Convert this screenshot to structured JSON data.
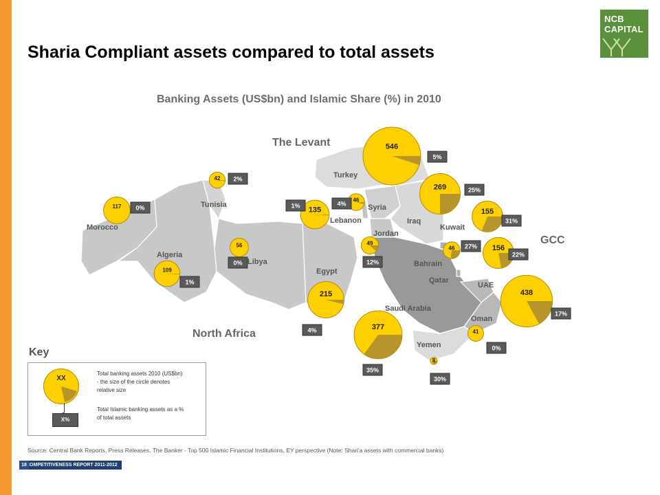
{
  "slide": {
    "title": "Sharia Compliant assets compared to total assets"
  },
  "logo": {
    "line1": "NCB",
    "line2": "CAPITAL",
    "color": "#5a8f3c"
  },
  "map": {
    "title": "Banking Assets (US$bn) and Islamic Share (%) in 2010",
    "regions": {
      "levant": "The Levant",
      "gcc": "GCC",
      "north_africa": "North Africa"
    },
    "countries": [
      {
        "name": "Morocco",
        "assets": 117,
        "islamic_share": "0%"
      },
      {
        "name": "Algeria",
        "assets": 109,
        "islamic_share": "1%"
      },
      {
        "name": "Tunisia",
        "assets": 42,
        "islamic_share": "2%"
      },
      {
        "name": "Libya",
        "assets": 56,
        "islamic_share": "0%"
      },
      {
        "name": "Egypt",
        "assets": 215,
        "islamic_share": "4%"
      },
      {
        "name": "Turkey",
        "assets": 546,
        "islamic_share": "5%"
      },
      {
        "name": "Syria",
        "assets": 46,
        "islamic_share": "4%"
      },
      {
        "name": "Lebanon",
        "assets": 135,
        "islamic_share": "1%"
      },
      {
        "name": "Jordan",
        "assets": 49,
        "islamic_share": "12%"
      },
      {
        "name": "Iraq",
        "assets": 269,
        "islamic_share": "25%"
      },
      {
        "name": "Kuwait",
        "assets": 155,
        "islamic_share": "31%"
      },
      {
        "name": "Bahrain",
        "assets": 46,
        "islamic_share": "27%"
      },
      {
        "name": "Qatar",
        "assets": 156,
        "islamic_share": "22%"
      },
      {
        "name": "UAE",
        "assets": 438,
        "islamic_share": "17%"
      },
      {
        "name": "Saudi Arabia",
        "assets": 377,
        "islamic_share": "35%"
      },
      {
        "name": "Oman",
        "assets": 41,
        "islamic_share": "0%"
      },
      {
        "name": "Yemen",
        "assets": 8,
        "islamic_share": "30%"
      }
    ]
  },
  "key": {
    "title": "Key",
    "circle_label": "XX",
    "share_label": "X%",
    "assets_desc_1": "Total banking assets 2010 (US$bn)",
    "assets_desc_2": "- the size of the circle denotes",
    "assets_desc_3": "relative size",
    "share_desc_1": "Total Islamic banking assets as a %",
    "share_desc_2": "of total assets"
  },
  "source": "Source: Central Bank Reports, Press Releases, The Banker - Top 500 Islamic Financial Institutions, EY perspective (Note: Shari'a assets with commercial banks)",
  "footer": {
    "page": "18",
    "label": "COMPETITIVENESS REPORT 2011-2012"
  },
  "colors": {
    "sidebar": "#f59a2f",
    "bubble": "#fed000",
    "islamic_wedge": "#b8952a",
    "label_box": "#5a5a5a",
    "land_light": "#d0d0d0",
    "land_dark": "#9a9a9a"
  }
}
